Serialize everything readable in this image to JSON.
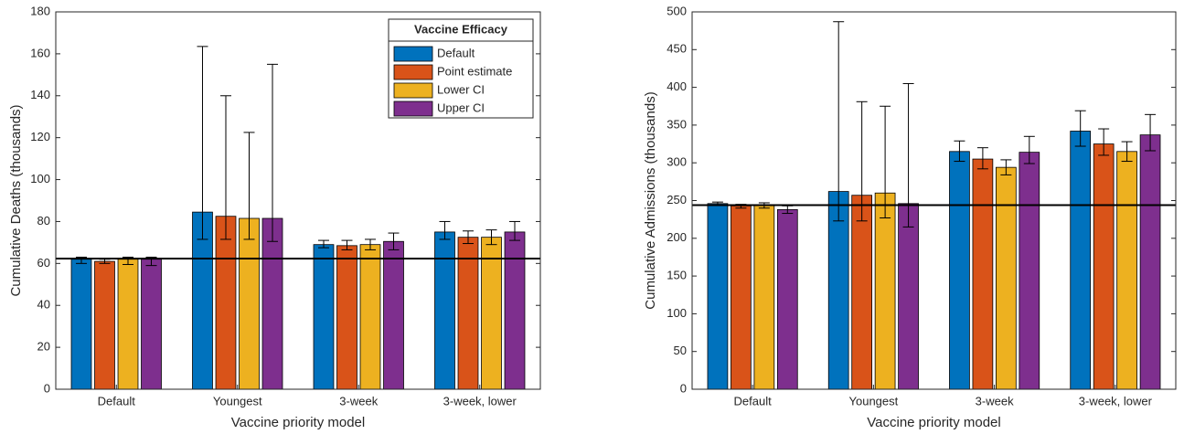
{
  "chart_data": [
    {
      "type": "bar",
      "xlabel": "Vaccine priority model",
      "ylabel": "Cumulative Deaths (thousands)",
      "categories": [
        "Default",
        "Youngest",
        "3-week",
        "3-week, lower"
      ],
      "ylim": [
        0,
        180
      ],
      "yticks": [
        0,
        20,
        40,
        60,
        80,
        100,
        120,
        140,
        160,
        180
      ],
      "reference_line": 62.3,
      "legend": {
        "title": "Vaccine Efficacy",
        "location": "upper right"
      },
      "series": [
        {
          "name": "Default",
          "color": "#0072bd",
          "values": [
            62,
            84.5,
            69,
            75
          ],
          "lower": [
            60,
            71.5,
            67.5,
            71.5
          ],
          "upper": [
            63,
            163.5,
            71,
            80
          ]
        },
        {
          "name": "Point estimate",
          "color": "#d95319",
          "values": [
            61,
            82.5,
            68.5,
            72.5
          ],
          "lower": [
            60,
            71.5,
            66.5,
            69.5
          ],
          "upper": [
            62,
            140,
            71,
            75.5
          ]
        },
        {
          "name": "Lower CI",
          "color": "#edb120",
          "values": [
            62,
            81.5,
            69,
            72.5
          ],
          "lower": [
            59.5,
            71.5,
            66.5,
            69
          ],
          "upper": [
            63,
            122.5,
            71.5,
            76
          ]
        },
        {
          "name": "Upper CI",
          "color": "#7e2f8e",
          "values": [
            62,
            81.5,
            70.5,
            75
          ],
          "lower": [
            59,
            70.5,
            66.5,
            71
          ],
          "upper": [
            63,
            155,
            74.5,
            80
          ]
        }
      ]
    },
    {
      "type": "bar",
      "xlabel": "Vaccine priority model",
      "ylabel": "Cumulative Admissions (thousands)",
      "categories": [
        "Default",
        "Youngest",
        "3-week",
        "3-week, lower"
      ],
      "ylim": [
        0,
        500
      ],
      "yticks": [
        0,
        50,
        100,
        150,
        200,
        250,
        300,
        350,
        400,
        450,
        500
      ],
      "reference_line": 244,
      "series": [
        {
          "color": "#0072bd",
          "values": [
            246,
            262,
            315,
            342
          ],
          "lower": [
            244,
            223,
            302,
            322
          ],
          "upper": [
            248,
            487,
            329,
            369
          ]
        },
        {
          "color": "#d95319",
          "values": [
            243,
            257,
            305,
            325
          ],
          "lower": [
            240,
            223,
            292,
            310
          ],
          "upper": [
            245,
            381,
            320,
            345
          ]
        },
        {
          "color": "#edb120",
          "values": [
            244,
            260,
            294,
            315
          ],
          "lower": [
            240,
            227,
            284,
            302
          ],
          "upper": [
            247,
            375,
            304,
            328
          ]
        },
        {
          "color": "#7e2f8e",
          "values": [
            238,
            246,
            314,
            337
          ],
          "lower": [
            233,
            215,
            299,
            316
          ],
          "upper": [
            243,
            405,
            335,
            364
          ]
        }
      ]
    }
  ]
}
